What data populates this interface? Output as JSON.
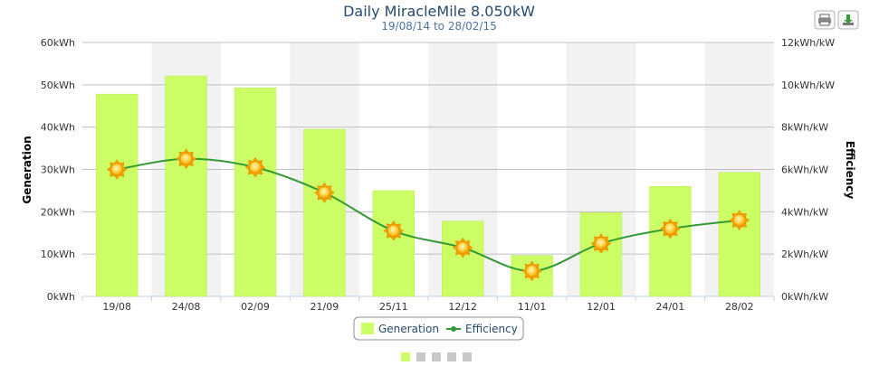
{
  "colors": {
    "bar": "#ccff66",
    "bar_stroke": "#b8e85a",
    "line": "#339933",
    "band": "#f2f2f2",
    "grid": "#c0c0c0",
    "sun_outer": "#f5a200",
    "sun_inner": "#ffd24a",
    "pager_active": "#ccff66",
    "pager_inactive": "#c8c8c8"
  },
  "toolbar": {
    "print_icon": "printer-icon",
    "export_icon": "download-icon"
  },
  "chart_data": {
    "type": "bar",
    "title": "Daily MiracleMile 8.050kW",
    "subtitle": "19/08/14 to 28/02/15",
    "categories": [
      "19/08",
      "24/08",
      "02/09",
      "21/09",
      "25/11",
      "12/12",
      "11/01",
      "12/01",
      "24/01",
      "28/02"
    ],
    "series": [
      {
        "name": "Generation",
        "type": "bar",
        "axis": "left",
        "values": [
          47.8,
          52.1,
          49.3,
          39.5,
          25.0,
          17.8,
          9.7,
          19.8,
          26.0,
          29.3
        ]
      },
      {
        "name": "Efficiency",
        "type": "line",
        "axis": "right",
        "marker": "sun",
        "values": [
          6.0,
          6.5,
          6.1,
          4.9,
          3.1,
          2.3,
          1.2,
          2.5,
          3.2,
          3.6
        ]
      }
    ],
    "y_left": {
      "label": "Generation",
      "ylim": [
        0,
        60
      ],
      "ticks": [
        "0kWh",
        "10kWh",
        "20kWh",
        "30kWh",
        "40kWh",
        "50kWh",
        "60kWh"
      ]
    },
    "y_right": {
      "label": "Efficiency",
      "ylim": [
        0,
        12
      ],
      "ticks": [
        "0kWh/kW",
        "2kWh/kW",
        "4kWh/kW",
        "6kWh/kW",
        "8kWh/kW",
        "10kWh/kW",
        "12kWh/kW"
      ]
    },
    "grid": true,
    "alternate_bands": true,
    "legend_position": "bottom-center",
    "pages": 5,
    "active_page": 1
  }
}
